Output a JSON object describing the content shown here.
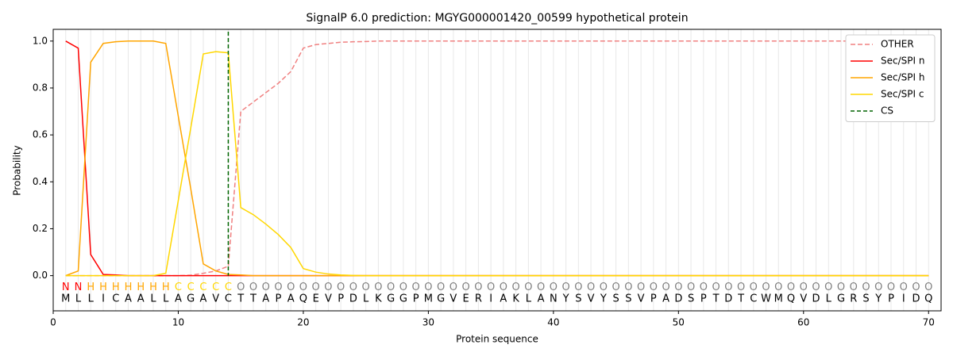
{
  "chart_data": {
    "type": "line",
    "title": "SignalP 6.0 prediction: MGYG000001420_00599 hypothetical protein",
    "x_label": "Protein sequence",
    "y_label": "Probability",
    "x": [
      1,
      2,
      3,
      4,
      5,
      6,
      7,
      8,
      9,
      10,
      11,
      12,
      13,
      14,
      15,
      16,
      17,
      18,
      19,
      20,
      21,
      22,
      23,
      24,
      25,
      26,
      27,
      28,
      29,
      30,
      31,
      32,
      33,
      34,
      35,
      36,
      37,
      38,
      39,
      40,
      41,
      42,
      43,
      44,
      45,
      46,
      47,
      48,
      49,
      50,
      51,
      52,
      53,
      54,
      55,
      56,
      57,
      58,
      59,
      60,
      61,
      62,
      63,
      64,
      65,
      66,
      67,
      68,
      69,
      70
    ],
    "sequence": [
      "M",
      "L",
      "L",
      "I",
      "C",
      "A",
      "A",
      "L",
      "L",
      "A",
      "G",
      "A",
      "V",
      "C",
      "T",
      "T",
      "A",
      "P",
      "A",
      "Q",
      "E",
      "V",
      "P",
      "D",
      "L",
      "K",
      "G",
      "G",
      "P",
      "M",
      "G",
      "V",
      "E",
      "R",
      "I",
      "A",
      "K",
      "L",
      "A",
      "N",
      "Y",
      "S",
      "V",
      "Y",
      "S",
      "S",
      "V",
      "P",
      "A",
      "D",
      "S",
      "P",
      "T",
      "D",
      "T",
      "C",
      "W",
      "M",
      "Q",
      "V",
      "D",
      "L",
      "G",
      "R",
      "S",
      "Y",
      "P",
      "I",
      "D",
      "Q"
    ],
    "region_labels": [
      "N",
      "N",
      "H",
      "H",
      "H",
      "H",
      "H",
      "H",
      "H",
      "C",
      "C",
      "C",
      "C",
      "C",
      "O",
      "O",
      "O",
      "O",
      "O",
      "O",
      "O",
      "O",
      "O",
      "O",
      "O",
      "O",
      "O",
      "O",
      "O",
      "O",
      "O",
      "O",
      "O",
      "O",
      "O",
      "O",
      "O",
      "O",
      "O",
      "O",
      "O",
      "O",
      "O",
      "O",
      "O",
      "O",
      "O",
      "O",
      "O",
      "O",
      "O",
      "O",
      "O",
      "O",
      "O",
      "O",
      "O",
      "O",
      "O",
      "O",
      "O",
      "O",
      "O",
      "O",
      "O",
      "O",
      "O",
      "O",
      "O",
      "O"
    ],
    "region_colors": {
      "N": "#ff0000",
      "H": "#ffa500",
      "C": "#ffd700",
      "O": "#808080"
    },
    "series": [
      {
        "name": "OTHER",
        "color": "#f08080",
        "dashed": true,
        "values": [
          0,
          0,
          0,
          0,
          0,
          0,
          0,
          0,
          0,
          0,
          0.002,
          0.01,
          0.02,
          0.04,
          0.7,
          0.74,
          0.78,
          0.82,
          0.87,
          0.97,
          0.985,
          0.99,
          0.995,
          0.997,
          0.998,
          1,
          1,
          1,
          1,
          1,
          1,
          1,
          1,
          1,
          1,
          1,
          1,
          1,
          1,
          1,
          1,
          1,
          1,
          1,
          1,
          1,
          1,
          1,
          1,
          1,
          1,
          1,
          1,
          1,
          1,
          1,
          1,
          1,
          1,
          1,
          1,
          1,
          1,
          1,
          1,
          1,
          1,
          1,
          1,
          1
        ]
      },
      {
        "name": "Sec/SPI n",
        "color": "#ff0000",
        "values": [
          1.0,
          0.97,
          0.09,
          0.005,
          0.003,
          0,
          0,
          0,
          0,
          0,
          0,
          0,
          0,
          0,
          0,
          0,
          0,
          0,
          0,
          0,
          0,
          0,
          0,
          0,
          0,
          0,
          0,
          0,
          0,
          0,
          0,
          0,
          0,
          0,
          0,
          0,
          0,
          0,
          0,
          0,
          0,
          0,
          0,
          0,
          0,
          0,
          0,
          0,
          0,
          0,
          0,
          0,
          0,
          0,
          0,
          0,
          0,
          0,
          0,
          0,
          0,
          0,
          0,
          0,
          0,
          0,
          0,
          0,
          0,
          0
        ]
      },
      {
        "name": "Sec/SPI h",
        "color": "#ffa500",
        "values": [
          0,
          0.02,
          0.91,
          0.99,
          0.997,
          1.0,
          1.0,
          1.0,
          0.99,
          0.68,
          0.37,
          0.05,
          0.02,
          0.005,
          0.003,
          0,
          0,
          0,
          0,
          0,
          0,
          0,
          0,
          0,
          0,
          0,
          0,
          0,
          0,
          0,
          0,
          0,
          0,
          0,
          0,
          0,
          0,
          0,
          0,
          0,
          0,
          0,
          0,
          0,
          0,
          0,
          0,
          0,
          0,
          0,
          0,
          0,
          0,
          0,
          0,
          0,
          0,
          0,
          0,
          0,
          0,
          0,
          0,
          0,
          0,
          0,
          0,
          0,
          0,
          0
        ]
      },
      {
        "name": "Sec/SPI c",
        "color": "#ffd700",
        "values": [
          0,
          0,
          0,
          0,
          0,
          0,
          0,
          0,
          0.01,
          0.32,
          0.63,
          0.945,
          0.955,
          0.95,
          0.29,
          0.26,
          0.22,
          0.175,
          0.12,
          0.03,
          0.015,
          0.007,
          0.003,
          0.001,
          0,
          0,
          0,
          0,
          0,
          0,
          0,
          0,
          0,
          0,
          0,
          0,
          0,
          0,
          0,
          0,
          0,
          0,
          0,
          0,
          0,
          0,
          0,
          0,
          0,
          0,
          0,
          0,
          0,
          0,
          0,
          0,
          0,
          0,
          0,
          0,
          0,
          0,
          0,
          0,
          0,
          0,
          0,
          0,
          0,
          0
        ]
      }
    ],
    "cs": {
      "name": "CS",
      "x": 14,
      "color": "#006400"
    },
    "xlim": [
      0,
      71
    ],
    "ylim": [
      -0.15,
      1.05
    ],
    "xticks": [
      0,
      10,
      20,
      30,
      40,
      50,
      60,
      70
    ],
    "yticks": [
      {
        "value": 0,
        "label": "0.0"
      },
      {
        "value": 0.2,
        "label": "0.2"
      },
      {
        "value": 0.4,
        "label": "0.4"
      },
      {
        "value": 0.6,
        "label": "0.6"
      },
      {
        "value": 0.8,
        "label": "0.8"
      },
      {
        "value": 1.0,
        "label": "1.0"
      }
    ],
    "grid": true,
    "legend": "upper right"
  }
}
